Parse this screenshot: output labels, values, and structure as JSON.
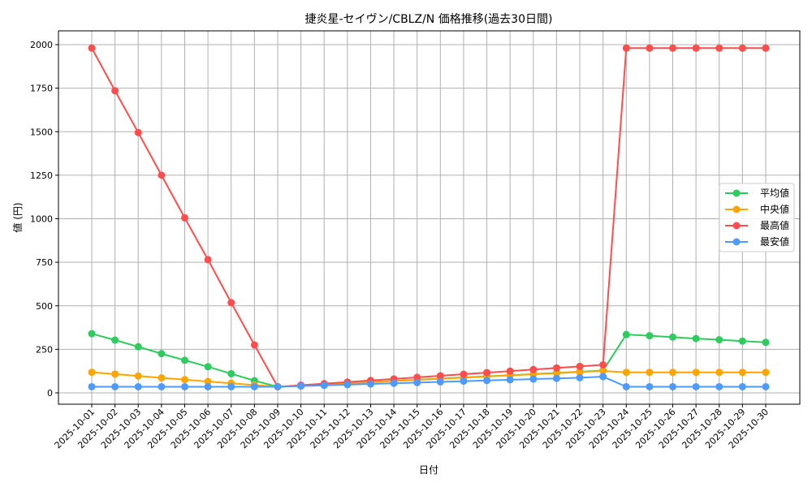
{
  "chart_data": {
    "type": "line",
    "title": "捷炎星-セイヴン/CBLZ/N 価格推移(過去30日間)",
    "xlabel": "日付",
    "ylabel": "値 (円)",
    "ylim": [
      -60,
      2070
    ],
    "yticks": [
      0,
      250,
      500,
      750,
      1000,
      1250,
      1500,
      1750,
      2000
    ],
    "grid": true,
    "legend_position": "center right",
    "categories": [
      "2025-10-01",
      "2025-10-02",
      "2025-10-03",
      "2025-10-04",
      "2025-10-05",
      "2025-10-06",
      "2025-10-07",
      "2025-10-08",
      "2025-10-09",
      "2025-10-10",
      "2025-10-11",
      "2025-10-12",
      "2025-10-13",
      "2025-10-14",
      "2025-10-15",
      "2025-10-16",
      "2025-10-17",
      "2025-10-18",
      "2025-10-19",
      "2025-10-20",
      "2025-10-21",
      "2025-10-22",
      "2025-10-23",
      "2025-10-24",
      "2025-10-25",
      "2025-10-26",
      "2025-10-27",
      "2025-10-28",
      "2025-10-29",
      "2025-10-30"
    ],
    "series": [
      {
        "name": "平均値",
        "color": "#2ecc5f",
        "values": [
          340,
          303,
          265,
          225,
          187,
          150,
          110,
          70,
          35,
          41,
          48,
          55,
          62,
          68,
          75,
          82,
          88,
          95,
          101,
          108,
          115,
          121,
          128,
          335,
          328,
          320,
          312,
          305,
          297,
          290
        ]
      },
      {
        "name": "中央値",
        "color": "#ffa500",
        "values": [
          118,
          108,
          97,
          86,
          76,
          65,
          55,
          45,
          35,
          42,
          48,
          55,
          61,
          68,
          74,
          81,
          87,
          94,
          100,
          107,
          113,
          120,
          126,
          118,
          118,
          118,
          118,
          118,
          118,
          118
        ]
      },
      {
        "name": "最高値",
        "color": "#ff4d4d",
        "values": [
          1980,
          1735,
          1495,
          1250,
          1005,
          765,
          518,
          275,
          35,
          44,
          53,
          62,
          71,
          80,
          89,
          98,
          107,
          116,
          125,
          134,
          143,
          152,
          161,
          1980,
          1980,
          1980,
          1980,
          1980,
          1980,
          1980
        ]
      },
      {
        "name": "最安値",
        "color": "#4d9bff",
        "values": [
          35,
          35,
          35,
          35,
          35,
          35,
          35,
          35,
          35,
          39,
          43,
          47,
          51,
          55,
          59,
          63,
          67,
          71,
          75,
          79,
          83,
          87,
          93,
          35,
          35,
          35,
          35,
          35,
          35,
          35
        ]
      }
    ]
  }
}
